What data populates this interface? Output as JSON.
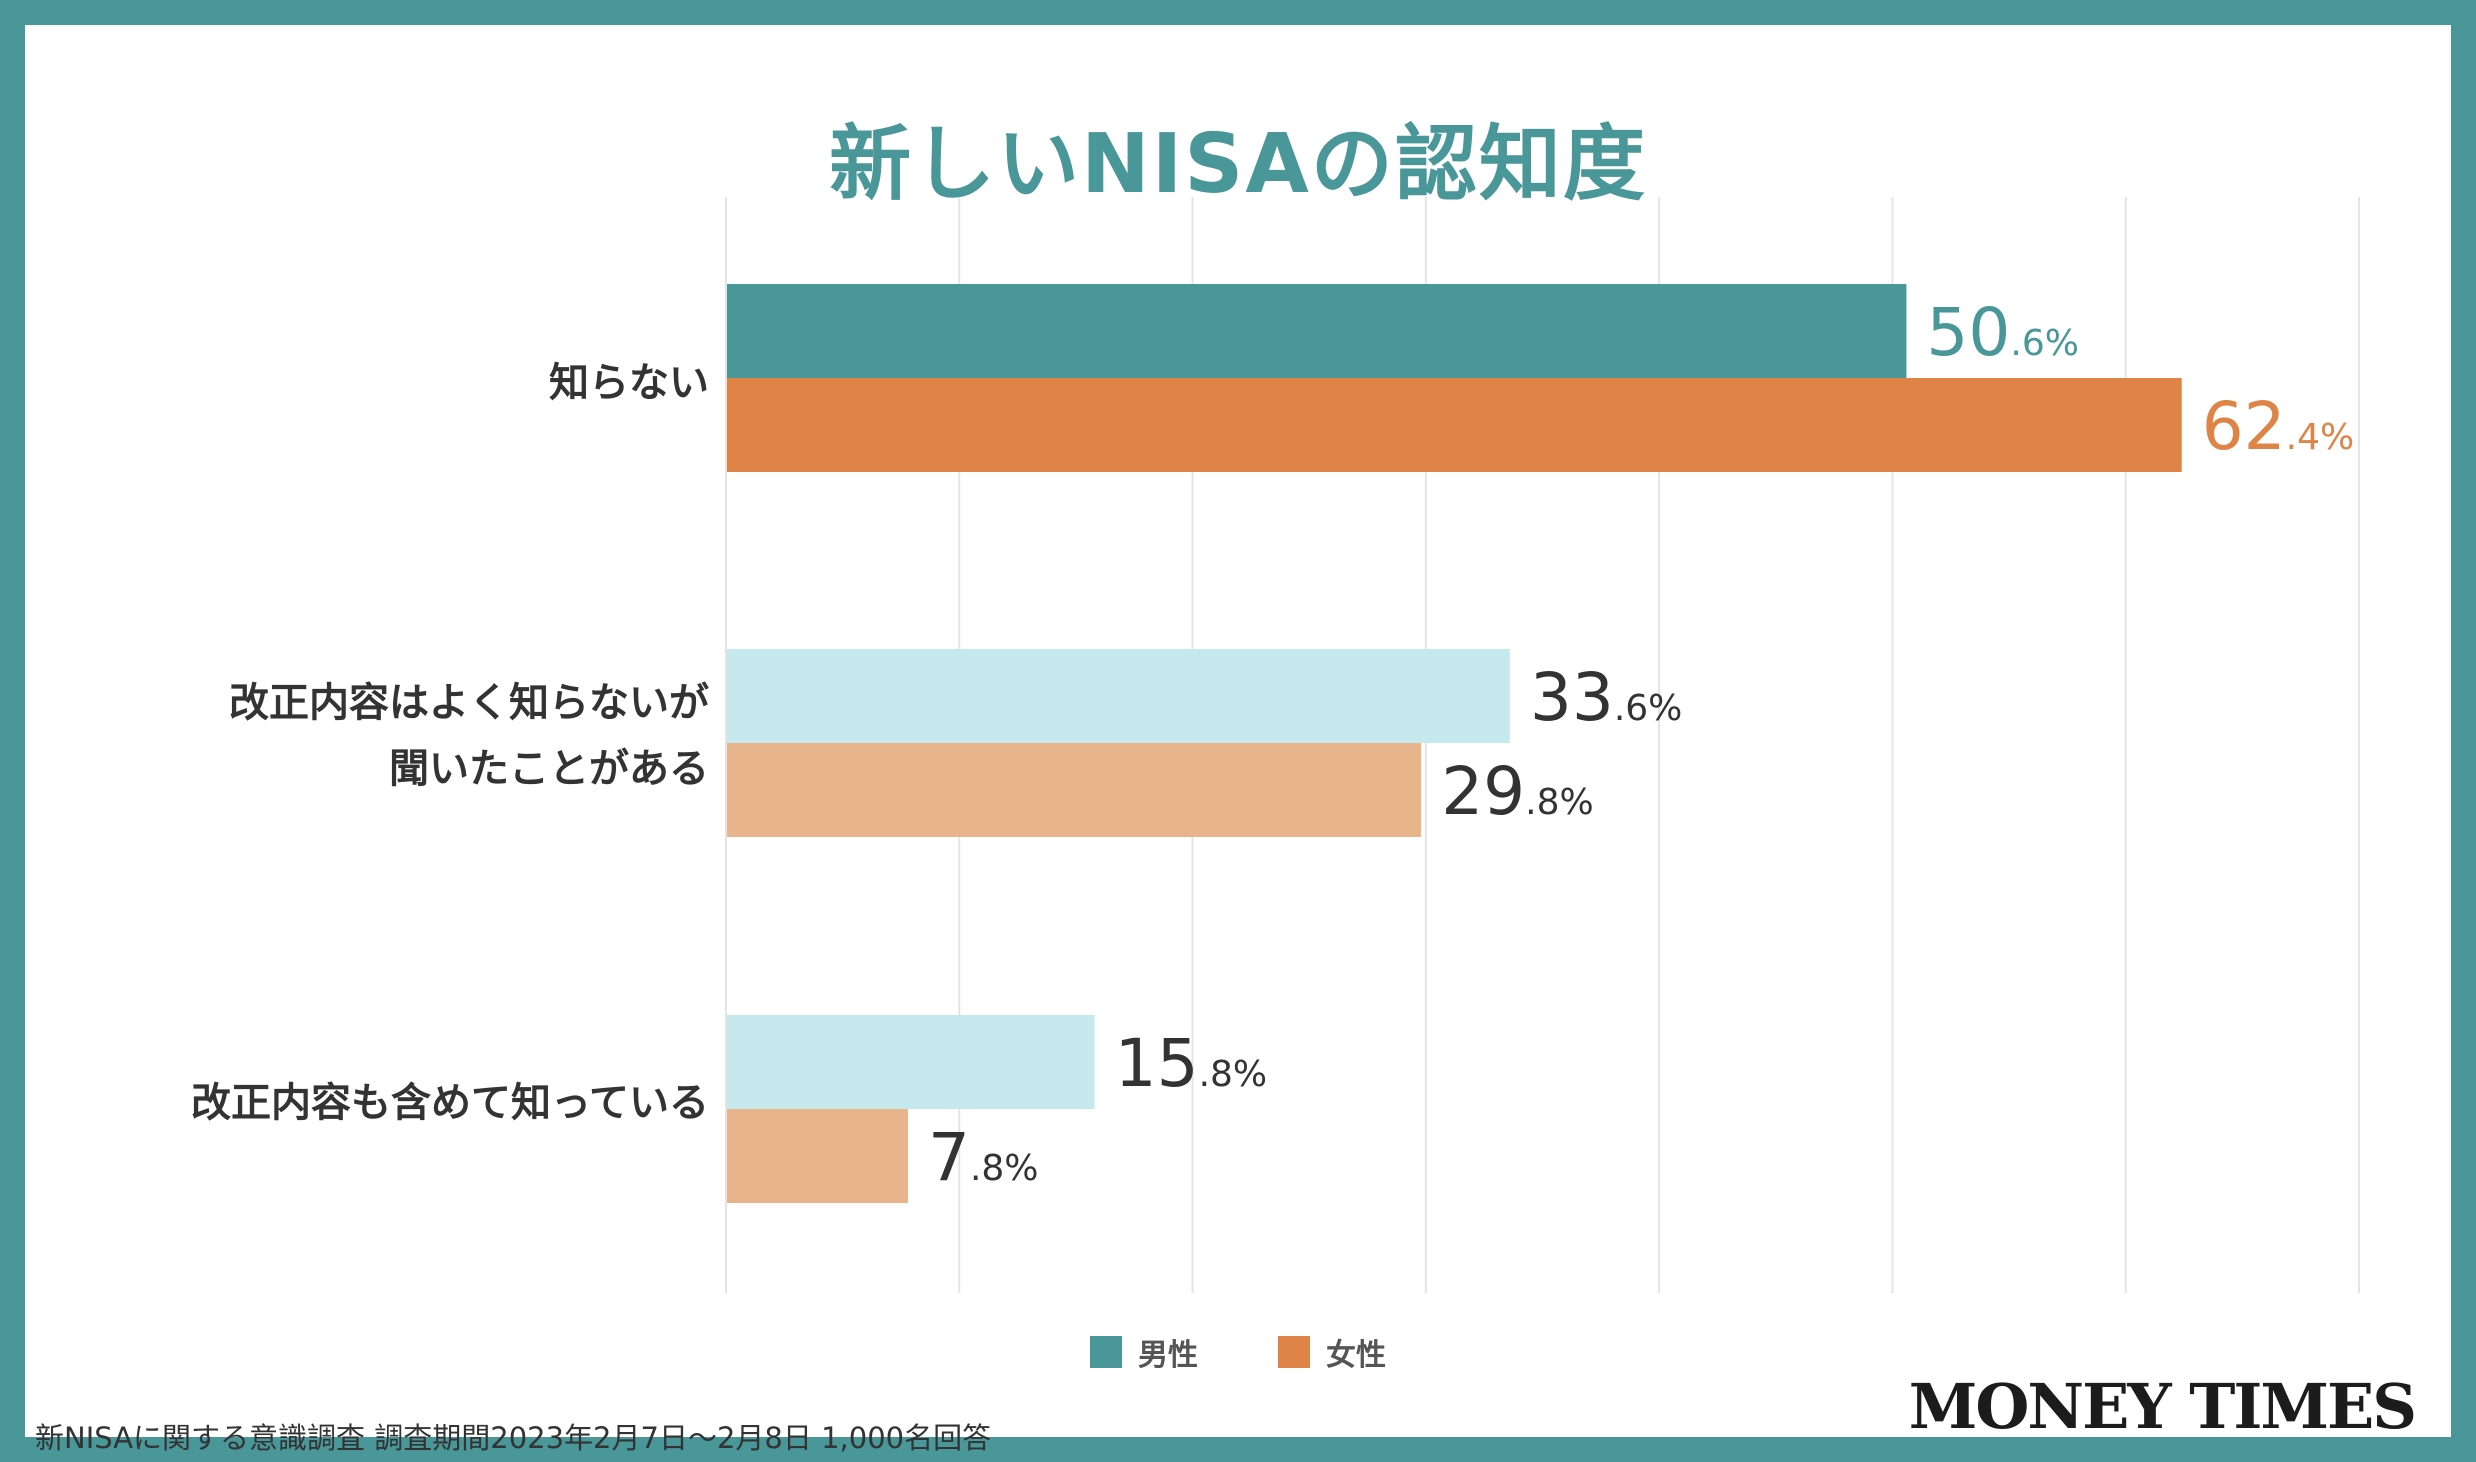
{
  "chart_data": {
    "type": "bar",
    "orientation": "horizontal",
    "title": "新しいNISAの認知度",
    "categories": [
      [
        "知らない"
      ],
      [
        "改正内容はよく知らないが",
        "聞いたことがある"
      ],
      [
        "改正内容も含めて知っている"
      ]
    ],
    "series": [
      {
        "name": "男性",
        "values": [
          50.6,
          33.6,
          15.8
        ]
      },
      {
        "name": "女性",
        "values": [
          62.4,
          29.8,
          7.8
        ]
      }
    ],
    "value_labels": {
      "男性": [
        {
          "int": "50",
          "dec": ".6%"
        },
        {
          "int": "33",
          "dec": ".6%"
        },
        {
          "int": "15",
          "dec": ".8%"
        }
      ],
      "女性": [
        {
          "int": "62",
          "dec": ".4%"
        },
        {
          "int": "29",
          "dec": ".8%"
        },
        {
          "int": "7",
          "dec": ".8%"
        }
      ]
    },
    "xlim": [
      0,
      70
    ],
    "grid_step": 10,
    "grid": true,
    "legend": "bottom-center",
    "colors": {
      "male_primary": "#4a9799",
      "female_primary": "#de8446",
      "male_light": "#c6e9ee",
      "female_light": "#e8b48b",
      "value_text_default": "#333333"
    }
  },
  "legend": [
    {
      "label": "男性",
      "color": "#4a9799"
    },
    {
      "label": "女性",
      "color": "#de8446"
    }
  ],
  "footnote": "新NISAに関する意識調査 調査期間2023年2月7日～2月8日 1,000名回答",
  "brand": "MONEY TIMES",
  "frame_color": "#4a9799"
}
